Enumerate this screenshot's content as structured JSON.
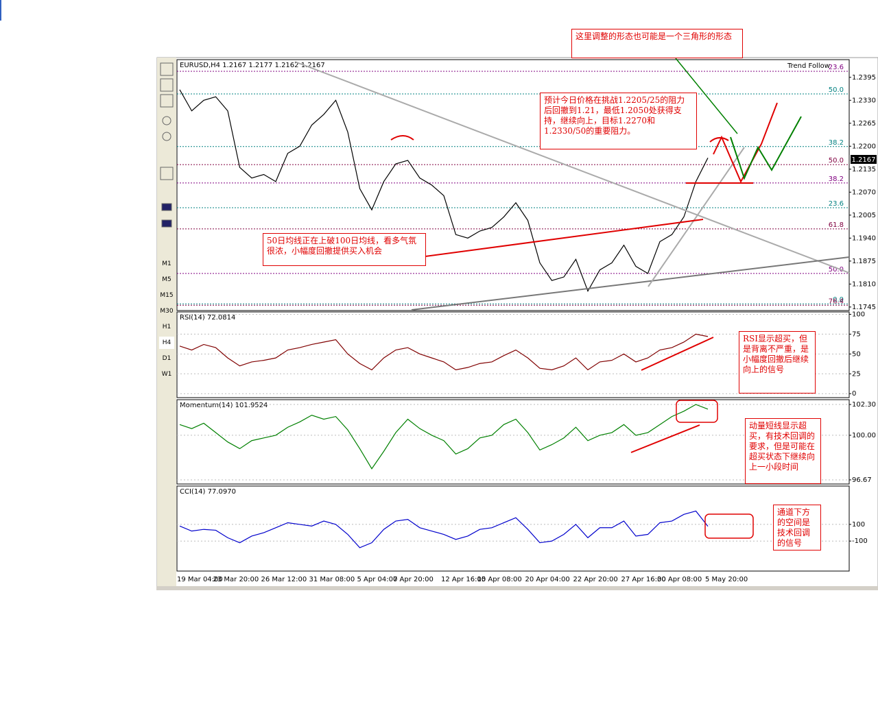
{
  "window": {
    "indicator_name": "Trend Follow",
    "timeframes": [
      "M1",
      "M5",
      "M15",
      "M30",
      "H1",
      "H4",
      "D1",
      "W1"
    ],
    "current_price": "1.2167"
  },
  "annotations": [
    "这里调整的形态也可能是一个三角形的形态",
    "预计今日价格在挑战1.2205/25的阻力后回撤到1.21，最低1.2050处获得支持，继续向上，目标1.2270和1.2330/50的重要阻力。",
    "50日均线正在上破100日均线，看多气氛很浓，小幅度回撤提供买入机会",
    "RSI显示超买，但是背离不严重，是小幅度回撤后继续向上的信号",
    "动量短线显示超买，有技术回调的要求，但是可能在超买状态下继续向上一小段时间",
    "通道下方的空间是技术回调的信号"
  ],
  "chart_data": [
    {
      "type": "line",
      "title": "EURUSD,H4  1.2167 1.2177 1.2162 1.2167",
      "color": "#000000",
      "categories": [
        "19 Mar 04:00",
        null,
        null,
        "23 Mar 20:00",
        null,
        null,
        null,
        "26 Mar 12:00",
        null,
        null,
        null,
        "31 Mar 08:00",
        null,
        null,
        null,
        "5 Apr 04:00",
        null,
        null,
        "7 Apr 20:00",
        null,
        null,
        null,
        "12 Apr 16:00",
        null,
        null,
        "15 Apr 08:00",
        null,
        null,
        null,
        "20 Apr 04:00",
        null,
        null,
        null,
        "22 Apr 20:00",
        null,
        null,
        null,
        "27 Apr 16:00",
        null,
        null,
        "30 Apr 08:00",
        null,
        null,
        null,
        "5 May 20:00"
      ],
      "values": [
        1.236,
        1.23,
        1.233,
        1.234,
        1.23,
        1.214,
        1.211,
        1.212,
        1.21,
        1.218,
        1.22,
        1.226,
        1.229,
        1.233,
        1.224,
        1.208,
        1.202,
        1.21,
        1.215,
        1.216,
        1.211,
        1.209,
        1.206,
        1.195,
        1.194,
        1.196,
        1.197,
        1.2,
        1.204,
        1.199,
        1.187,
        1.182,
        1.183,
        1.188,
        1.179,
        1.185,
        1.187,
        1.192,
        1.186,
        1.184,
        1.193,
        1.195,
        1.2,
        1.21,
        1.2167
      ],
      "ylim": [
        1.1735,
        1.2445
      ],
      "yticks": [
        1.2395,
        {
          "value": 1.233,
          "label": "1.2330"
        },
        1.2265,
        {
          "value": 1.22,
          "label": "1.2200"
        },
        1.2135,
        {
          "value": 1.207,
          "label": "1.2070"
        },
        1.2005,
        {
          "value": 1.194,
          "label": "1.1940"
        },
        1.1875,
        {
          "value": 1.181,
          "label": "1.1810"
        },
        1.1745
      ],
      "levels": [
        {
          "label": "23.6",
          "value": 1.2412,
          "color": "#800080"
        },
        {
          "label": "50.0",
          "value": 1.2348,
          "color": "#008080"
        },
        {
          "label": "38.2",
          "value": 1.2199,
          "color": "#008080"
        },
        {
          "label": "50.0",
          "value": 1.2148,
          "color": "#800040"
        },
        {
          "label": "38.2",
          "value": 1.2096,
          "color": "#800080"
        },
        {
          "label": "23.6",
          "value": 1.2026,
          "color": "#008080"
        },
        {
          "label": "61.8",
          "value": 1.1966,
          "color": "#800040"
        },
        {
          "label": "50.0",
          "value": 1.184,
          "color": "#800080"
        },
        {
          "label": "0.0",
          "value": 1.1754,
          "color": "#008080"
        },
        {
          "label": "76.4",
          "value": 1.175,
          "color": "#800040"
        }
      ]
    },
    {
      "type": "line",
      "title": "RSI(14) 72.0814",
      "color": "#800000",
      "ylim": [
        -5,
        103
      ],
      "yticks": [
        100,
        75,
        50,
        25,
        0
      ],
      "values": [
        60,
        55,
        62,
        58,
        45,
        35,
        40,
        42,
        45,
        55,
        58,
        62,
        65,
        68,
        50,
        38,
        30,
        45,
        55,
        58,
        50,
        45,
        40,
        30,
        33,
        38,
        40,
        48,
        55,
        45,
        32,
        30,
        35,
        45,
        30,
        40,
        42,
        50,
        40,
        45,
        55,
        58,
        65,
        75,
        72
      ]
    },
    {
      "type": "line",
      "title": "Momentum(14) 101.9524",
      "color": "#008000",
      "ylim": [
        96.36,
        102.66
      ],
      "yticks": [
        {
          "value": 102.3,
          "label": "102.30"
        },
        {
          "value": 100,
          "label": "100.00"
        },
        96.67
      ],
      "values": [
        100.8,
        100.5,
        100.9,
        100.2,
        99.5,
        99.0,
        99.6,
        99.8,
        100.0,
        100.6,
        101.0,
        101.5,
        101.2,
        101.4,
        100.4,
        99.0,
        97.5,
        98.8,
        100.2,
        101.2,
        100.5,
        100.0,
        99.6,
        98.6,
        99.0,
        99.8,
        100.0,
        100.8,
        101.2,
        100.2,
        98.9,
        99.3,
        99.8,
        100.6,
        99.6,
        100.0,
        100.2,
        100.8,
        100.0,
        100.2,
        100.8,
        101.4,
        101.8,
        102.3,
        101.95
      ]
    },
    {
      "type": "line",
      "title": "CCI(14) 77.0970",
      "color": "#0000cc",
      "ylim": [
        -460,
        560
      ],
      "yticks": [
        100,
        -100
      ],
      "values": [
        80,
        20,
        40,
        30,
        -60,
        -120,
        -40,
        0,
        60,
        120,
        100,
        80,
        140,
        100,
        -20,
        -180,
        -120,
        40,
        140,
        160,
        60,
        20,
        -20,
        -80,
        -40,
        40,
        60,
        120,
        180,
        40,
        -120,
        -100,
        -20,
        100,
        -60,
        60,
        60,
        140,
        -40,
        -20,
        120,
        140,
        220,
        260,
        77
      ]
    }
  ]
}
